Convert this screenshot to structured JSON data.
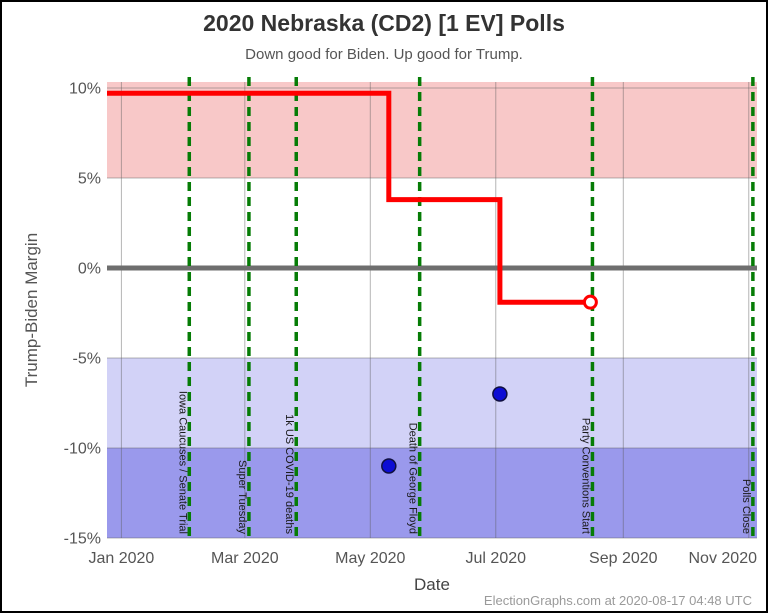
{
  "header": {
    "title": "2020 Nebraska (CD2) [1 EV] Polls",
    "subtitle": "Down good for Biden. Up good for Trump."
  },
  "footer": {
    "credit": "ElectionGraphs.com at 2020-08-17 04:48 UTC"
  },
  "chart_data": {
    "type": "line",
    "title": "2020 Nebraska (CD2) [1 EV] Polls",
    "subtitle": "Down good for Biden. Up good for Trump.",
    "xlabel": "Date",
    "ylabel": "Trump-Biden Margin",
    "x_domain": [
      "2019-12-25",
      "2020-11-05"
    ],
    "ylim": [
      -15,
      10.33
    ],
    "grid_on": true,
    "colors": {
      "average_line": "#ff0000",
      "poll_point_fill": "#0d0dd4",
      "poll_point_edge": "#101040",
      "event_line": "#067c06",
      "event_text": "#1a1a1a",
      "grid": "rgba(90,90,90,0.45)",
      "zero_line": "#6e6e6e",
      "tick_text": "#555555",
      "band_trump": "#f8c8c8",
      "band_biden_light": "#d2d2f7",
      "band_biden_dark": "#9a99ec"
    },
    "y_ticks": [
      {
        "value": 10,
        "label": "10%"
      },
      {
        "value": 5,
        "label": "5%"
      },
      {
        "value": 0,
        "label": "0%"
      },
      {
        "value": -5,
        "label": "-5%"
      },
      {
        "value": -10,
        "label": "-10%"
      },
      {
        "value": -15,
        "label": "-15%"
      }
    ],
    "x_ticks": [
      {
        "date": "2020-01-01",
        "label": "Jan 2020"
      },
      {
        "date": "2020-03-01",
        "label": "Mar 2020"
      },
      {
        "date": "2020-05-01",
        "label": "May 2020"
      },
      {
        "date": "2020-07-01",
        "label": "Jul 2020"
      },
      {
        "date": "2020-09-01",
        "label": "Sep 2020"
      },
      {
        "date": "2020-11-01",
        "label": "Nov 2020"
      }
    ],
    "bands": [
      {
        "name": "trump-lead-band",
        "from": 5,
        "to": 10.33,
        "color": "#f8c8c8"
      },
      {
        "name": "biden-lead-weak-band",
        "from": -10,
        "to": -5,
        "color": "#d2d2f7"
      },
      {
        "name": "biden-lead-strong-band",
        "from": -15,
        "to": -10,
        "color": "#9a99ec"
      }
    ],
    "zero_line": {
      "value": 0
    },
    "events": [
      {
        "date": "2020-02-03",
        "label": "Iowa Caucuses / Senate Trial"
      },
      {
        "date": "2020-03-03",
        "label": "Super Tuesday"
      },
      {
        "date": "2020-03-26",
        "label": "1k US COVID-19 deaths"
      },
      {
        "date": "2020-05-25",
        "label": "Death of George Floyd"
      },
      {
        "date": "2020-08-17",
        "label": "Party Conventions Start"
      },
      {
        "date": "2020-11-03",
        "label": "Polls Close"
      }
    ],
    "series": [
      {
        "name": "poll-average",
        "type": "step",
        "end_marker": "open-circle",
        "points": [
          [
            "2019-12-25",
            9.7
          ],
          [
            "2020-05-10",
            9.7
          ],
          [
            "2020-05-10",
            3.8
          ],
          [
            "2020-07-03",
            3.8
          ],
          [
            "2020-07-03",
            -1.9
          ],
          [
            "2020-08-16",
            -1.9
          ]
        ]
      },
      {
        "name": "polls",
        "type": "scatter",
        "points": [
          [
            "2020-05-10",
            -11
          ],
          [
            "2020-07-03",
            -7
          ]
        ]
      }
    ]
  }
}
